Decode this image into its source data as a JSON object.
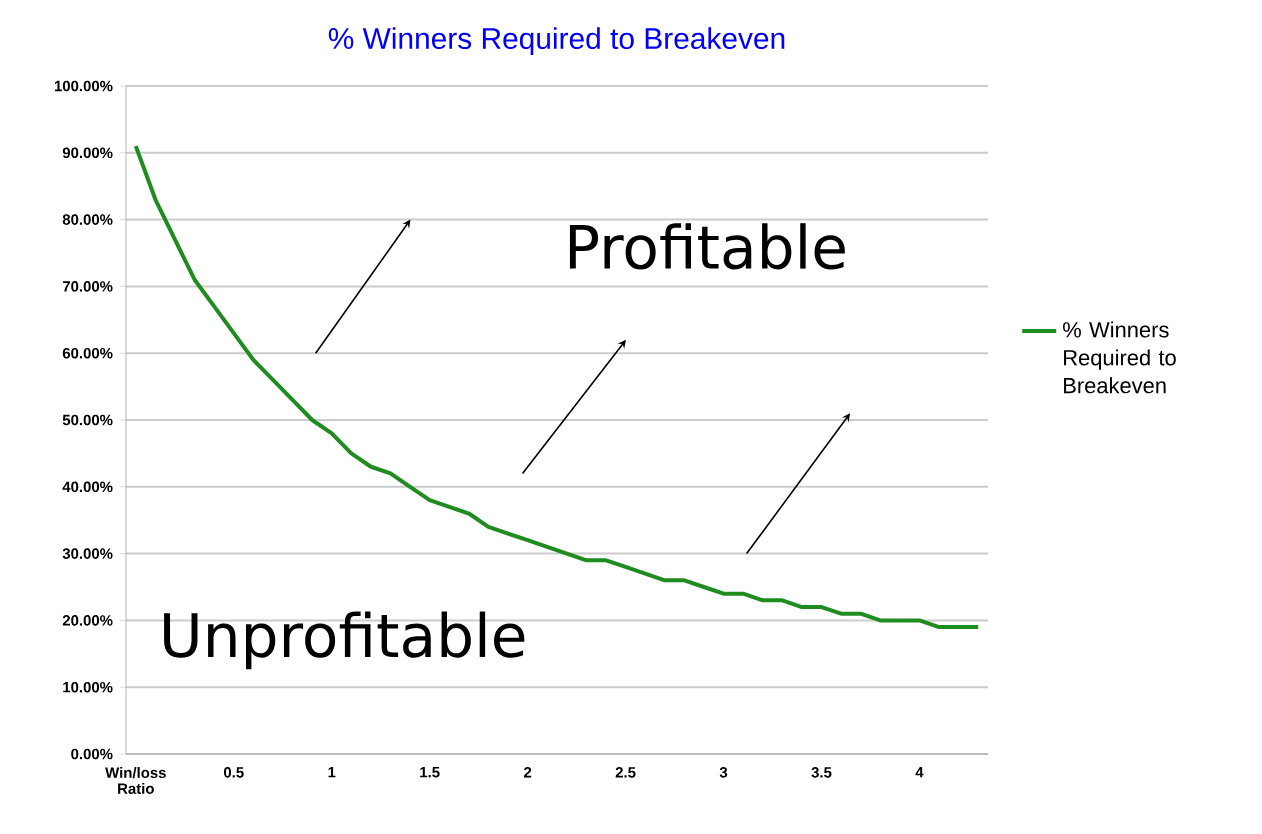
{
  "chart_data": {
    "type": "line",
    "title": "% Winners Required to Breakeven",
    "categories": [
      "Win/loss Ratio",
      null,
      null,
      null,
      null,
      "0.5",
      null,
      null,
      null,
      null,
      "1",
      null,
      null,
      null,
      null,
      "1.5",
      null,
      null,
      null,
      null,
      "2",
      null,
      null,
      null,
      null,
      "2.5",
      null,
      null,
      null,
      null,
      "3",
      null,
      null,
      null,
      null,
      "3.5",
      null,
      null,
      null,
      null,
      "4",
      null,
      null,
      null
    ],
    "series": [
      {
        "name": "% Winners Required to Breakeven",
        "color": "#1e8c1e",
        "values": [
          91,
          83,
          77,
          71,
          67,
          63,
          59,
          56,
          53,
          50,
          48,
          45,
          43,
          42,
          40,
          38,
          37,
          36,
          34,
          33,
          32,
          31,
          30,
          29,
          29,
          28,
          27,
          26,
          26,
          25,
          24,
          24,
          23,
          23,
          22,
          22,
          21,
          21,
          20,
          20,
          20,
          19,
          19,
          19
        ]
      }
    ],
    "ylim": [
      0,
      100
    ],
    "yticks": [
      {
        "value": 0,
        "label": "0.00%"
      },
      {
        "value": 10,
        "label": "10.00%"
      },
      {
        "value": 20,
        "label": "20.00%"
      },
      {
        "value": 30,
        "label": "30.00%"
      },
      {
        "value": 40,
        "label": "40.00%"
      },
      {
        "value": 50,
        "label": "50.00%"
      },
      {
        "value": 60,
        "label": "60.00%"
      },
      {
        "value": 70,
        "label": "70.00%"
      },
      {
        "value": 80,
        "label": "80.00%"
      },
      {
        "value": 90,
        "label": "90.00%"
      },
      {
        "value": 100,
        "label": "100.00%"
      }
    ],
    "annotations": [
      "Profitable",
      "Unprofitable"
    ],
    "grid": "y",
    "legend": "right",
    "marker": "none",
    "line_style": "solid"
  }
}
